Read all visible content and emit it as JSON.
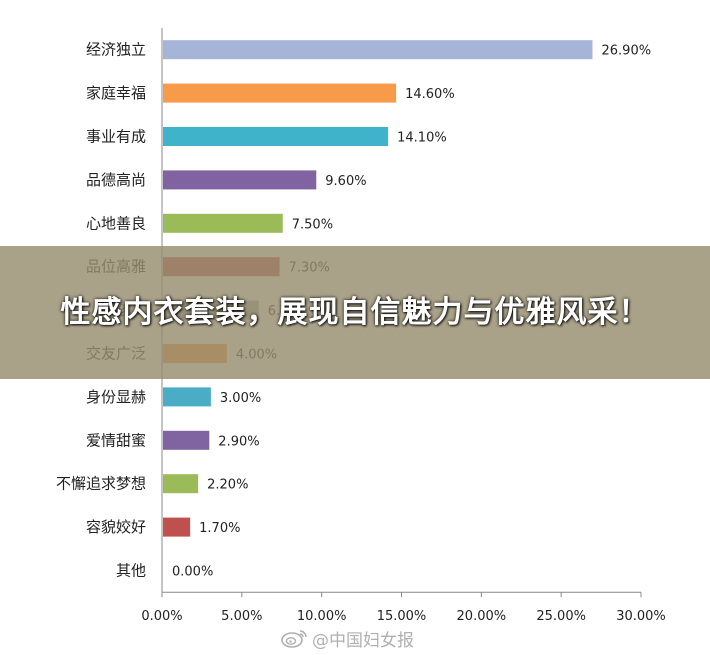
{
  "chart_data": {
    "type": "bar",
    "orientation": "horizontal",
    "categories": [
      "经济独立",
      "家庭幸福",
      "事业有成",
      "品德高尚",
      "心地善良",
      "品位高雅",
      "孩…",
      "交友广泛",
      "身份显赫",
      "爱情甜蜜",
      "不懈追求梦想",
      "容貌姣好",
      "其他"
    ],
    "values": [
      26.9,
      14.6,
      14.1,
      9.6,
      7.5,
      7.3,
      6.0,
      4.0,
      3.0,
      2.9,
      2.2,
      1.7,
      0.0
    ],
    "value_labels": [
      "26.90%",
      "14.60%",
      "14.10%",
      "9.60%",
      "7.50%",
      "7.30%",
      "6.…",
      "4.00%",
      "3.00%",
      "2.90%",
      "2.20%",
      "1.70%",
      "0.00%"
    ],
    "colors": [
      "#a6b4d8",
      "#f79a4a",
      "#3fb3c9",
      "#8064a2",
      "#9bbb59",
      "#c0504d",
      "#a8a8a8",
      "#f79646",
      "#4bacc6",
      "#8064a2",
      "#9bbb59",
      "#c0504d",
      "#4f81bd"
    ],
    "xlim": [
      0,
      30
    ],
    "xticks": [
      "0.00%",
      "5.00%",
      "10.00%",
      "15.00%",
      "20.00%",
      "25.00%",
      "30.00%"
    ],
    "xtick_values": [
      0,
      5,
      10,
      15,
      20,
      25,
      30
    ],
    "grid": false,
    "title": "",
    "xlabel": "",
    "ylabel": ""
  },
  "banner": {
    "title": "性感内衣套装，展现自信魅力与优雅风采！"
  },
  "watermark": {
    "text": "@中国妇女报",
    "icon": "weibo-icon"
  }
}
